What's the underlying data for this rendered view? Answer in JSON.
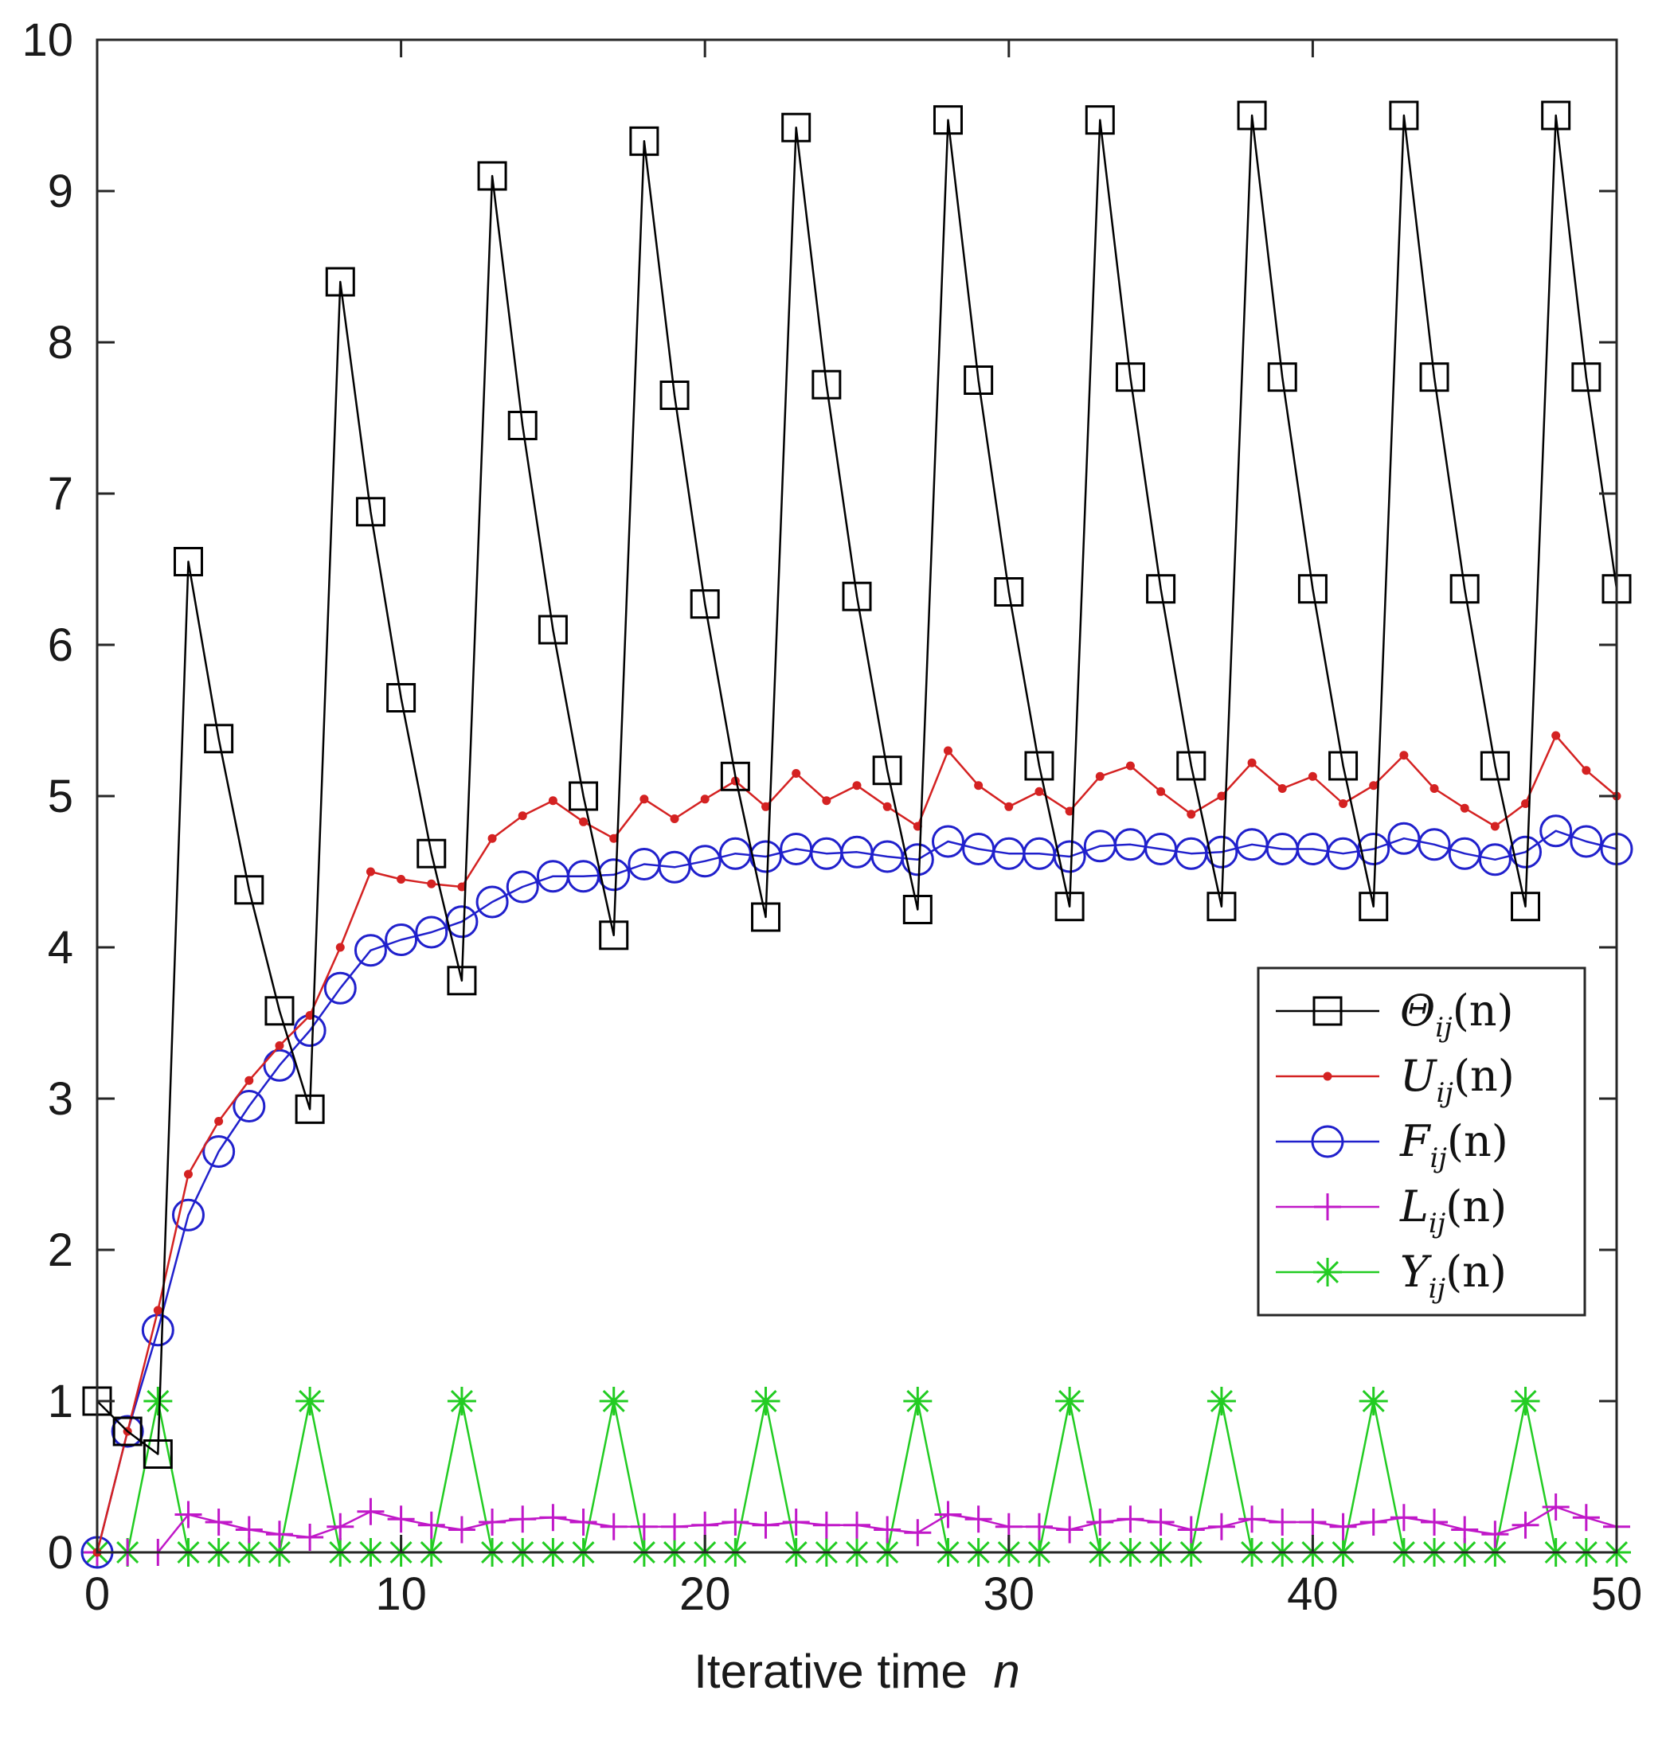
{
  "chart_data": {
    "type": "line",
    "title": "",
    "xlabel": "Iterative time",
    "xlabel_var": "n",
    "ylabel": "",
    "xlim": [
      0,
      50
    ],
    "ylim": [
      0,
      10
    ],
    "xticks": [
      "0",
      "10",
      "20",
      "30",
      "40",
      "50"
    ],
    "yticks": [
      "0",
      "1",
      "2",
      "3",
      "4",
      "5",
      "6",
      "7",
      "8",
      "9",
      "10"
    ],
    "grid": false,
    "legend_position": "center-right",
    "x": [
      0,
      1,
      2,
      3,
      4,
      5,
      6,
      7,
      8,
      9,
      10,
      11,
      12,
      13,
      14,
      15,
      16,
      17,
      18,
      19,
      20,
      21,
      22,
      23,
      24,
      25,
      26,
      27,
      28,
      29,
      30,
      31,
      32,
      33,
      34,
      35,
      36,
      37,
      38,
      39,
      40,
      41,
      42,
      43,
      44,
      45,
      46,
      47,
      48,
      49,
      50
    ],
    "series": [
      {
        "name": "Θij(n)",
        "sym": "Θ",
        "sub": "ij",
        "arg": "(n)",
        "color": "#000000",
        "marker": "square",
        "values": [
          1.0,
          0.8,
          0.65,
          6.55,
          5.38,
          4.38,
          3.58,
          2.93,
          8.4,
          6.88,
          5.65,
          4.62,
          3.78,
          9.1,
          7.45,
          6.1,
          5.0,
          4.08,
          9.33,
          7.65,
          6.27,
          5.13,
          4.2,
          9.42,
          7.72,
          6.32,
          5.17,
          4.25,
          9.47,
          7.75,
          6.35,
          5.2,
          4.27,
          9.47,
          7.77,
          6.37,
          5.2,
          4.27,
          9.5,
          7.77,
          6.37,
          5.2,
          4.27,
          9.5,
          7.77,
          6.37,
          5.2,
          4.27,
          9.5,
          7.77,
          6.37
        ]
      },
      {
        "name": "Uij(n)",
        "sym": "U",
        "sub": "ij",
        "arg": "(n)",
        "color": "#d42222",
        "marker": "dot",
        "values": [
          0.0,
          0.8,
          1.6,
          2.5,
          2.85,
          3.12,
          3.35,
          3.55,
          4.0,
          4.5,
          4.45,
          4.42,
          4.4,
          4.72,
          4.87,
          4.97,
          4.83,
          4.72,
          4.98,
          4.85,
          4.98,
          5.1,
          4.93,
          5.15,
          4.97,
          5.07,
          4.93,
          4.8,
          5.3,
          5.07,
          4.93,
          5.03,
          4.9,
          5.13,
          5.2,
          5.03,
          4.88,
          5.0,
          5.22,
          5.05,
          5.13,
          4.95,
          5.07,
          5.27,
          5.05,
          4.92,
          4.8,
          4.95,
          5.4,
          5.17,
          5.0
        ]
      },
      {
        "name": "Fij(n)",
        "sym": "F",
        "sub": "ij",
        "arg": "(n)",
        "color": "#2020cc",
        "marker": "circle",
        "values": [
          0.0,
          0.8,
          1.47,
          2.23,
          2.65,
          2.95,
          3.22,
          3.45,
          3.73,
          3.98,
          4.05,
          4.1,
          4.17,
          4.3,
          4.4,
          4.47,
          4.47,
          4.48,
          4.55,
          4.53,
          4.57,
          4.62,
          4.6,
          4.65,
          4.62,
          4.63,
          4.6,
          4.58,
          4.7,
          4.65,
          4.62,
          4.62,
          4.6,
          4.67,
          4.68,
          4.65,
          4.62,
          4.63,
          4.68,
          4.65,
          4.65,
          4.62,
          4.65,
          4.72,
          4.68,
          4.62,
          4.58,
          4.63,
          4.77,
          4.7,
          4.65
        ]
      },
      {
        "name": "Lij(n)",
        "sym": "L",
        "sub": "ij",
        "arg": "(n)",
        "color": "#c018c8",
        "marker": "plus",
        "values": [
          0.0,
          0.0,
          0.0,
          0.25,
          0.2,
          0.15,
          0.12,
          0.1,
          0.17,
          0.27,
          0.22,
          0.18,
          0.15,
          0.2,
          0.22,
          0.23,
          0.2,
          0.17,
          0.17,
          0.17,
          0.18,
          0.2,
          0.18,
          0.2,
          0.18,
          0.18,
          0.15,
          0.13,
          0.25,
          0.22,
          0.17,
          0.17,
          0.15,
          0.2,
          0.22,
          0.2,
          0.15,
          0.17,
          0.22,
          0.2,
          0.2,
          0.17,
          0.2,
          0.23,
          0.2,
          0.15,
          0.12,
          0.18,
          0.3,
          0.23,
          0.17
        ]
      },
      {
        "name": "Yij(n)",
        "sym": "Y",
        "sub": "ij",
        "arg": "(n)",
        "color": "#22cc22",
        "marker": "star",
        "values": [
          0,
          0,
          1,
          0,
          0,
          0,
          0,
          1,
          0,
          0,
          0,
          0,
          1,
          0,
          0,
          0,
          0,
          1,
          0,
          0,
          0,
          0,
          1,
          0,
          0,
          0,
          0,
          1,
          0,
          0,
          0,
          0,
          1,
          0,
          0,
          0,
          0,
          1,
          0,
          0,
          0,
          0,
          1,
          0,
          0,
          0,
          0,
          1,
          0,
          0,
          0
        ]
      }
    ]
  }
}
